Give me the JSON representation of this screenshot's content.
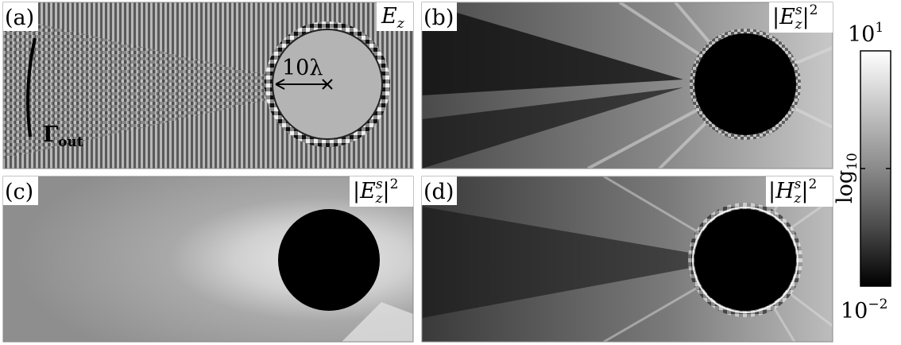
{
  "panels": [
    {
      "id": "a",
      "letter": "(a)",
      "field_main": "E",
      "field_sub": "z",
      "field_sup": "",
      "wrap": ""
    },
    {
      "id": "b",
      "letter": "(b)",
      "field_main": "E",
      "field_sub": "z",
      "field_sup": "s",
      "wrap": "abs2"
    },
    {
      "id": "c",
      "letter": "(c)",
      "field_main": "E",
      "field_sub": "z",
      "field_sup": "s",
      "wrap": "abs2"
    },
    {
      "id": "d",
      "letter": "(d)",
      "field_main": "H",
      "field_sub": "z",
      "field_sup": "s",
      "wrap": "abs2"
    }
  ],
  "annotations": {
    "radius_label": "10λ",
    "boundary_main": "Γ",
    "boundary_sub": "out"
  },
  "colorbar": {
    "top_base": "10",
    "top_exp": "1",
    "bottom_base": "10",
    "bottom_exp": "−2",
    "axis_main": "log",
    "axis_sub": "10",
    "colormap": "grayscale",
    "colors": {
      "low": "#000000",
      "high": "#ffffff"
    }
  }
}
